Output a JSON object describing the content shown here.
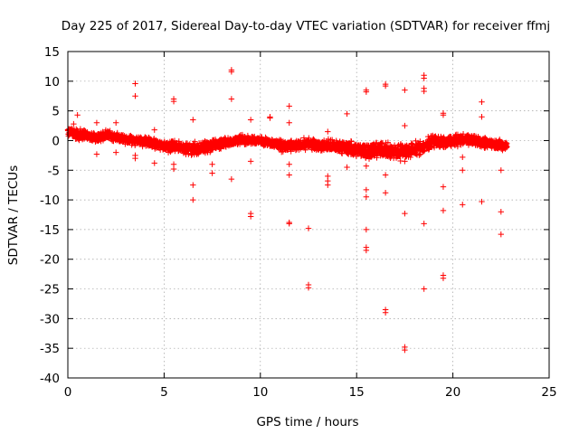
{
  "chart_data": {
    "type": "scatter",
    "title": "Day 225 of 2017, Sidereal Day-to-day VTEC variation (SDTVAR) for receiver ffmj",
    "xlabel": "GPS time / hours",
    "ylabel": "SDTVAR / TECUs",
    "xlim": [
      0,
      25
    ],
    "ylim": [
      -40,
      15
    ],
    "xticks": [
      0,
      5,
      10,
      15,
      20,
      25
    ],
    "yticks": [
      15,
      10,
      5,
      0,
      -5,
      -10,
      -15,
      -20,
      -25,
      -30,
      -35,
      -40
    ],
    "grid": true,
    "marker": "+",
    "series": [
      {
        "name": "SDTVAR",
        "color": "#ff0000",
        "band": {
          "x": [
            0.0,
            0.5,
            1.0,
            1.5,
            2.0,
            2.5,
            3.0,
            3.5,
            4.0,
            4.5,
            5.0,
            5.5,
            6.0,
            6.5,
            7.0,
            7.5,
            8.0,
            8.5,
            9.0,
            9.5,
            10.0,
            10.5,
            11.0,
            11.5,
            12.0,
            12.5,
            13.0,
            13.5,
            14.0,
            14.5,
            15.0,
            15.5,
            16.0,
            16.5,
            17.0,
            17.5,
            18.0,
            18.5,
            19.0,
            19.5,
            20.0,
            20.5,
            21.0,
            21.5,
            22.0,
            22.5,
            22.8
          ],
          "center": [
            1.5,
            1.0,
            0.8,
            0.5,
            1.0,
            0.5,
            0.2,
            0.0,
            -0.3,
            -0.5,
            -1.0,
            -1.0,
            -1.2,
            -1.5,
            -1.2,
            -0.8,
            -0.5,
            -0.3,
            0.2,
            0.0,
            0.0,
            -0.3,
            -0.8,
            -1.0,
            -0.8,
            -0.5,
            -0.8,
            -1.0,
            -1.0,
            -1.2,
            -1.5,
            -1.8,
            -1.5,
            -1.5,
            -2.0,
            -1.8,
            -1.5,
            -1.0,
            0.0,
            -0.5,
            0.0,
            0.2,
            0.0,
            -0.3,
            -0.5,
            -0.8,
            -0.8
          ],
          "spread": [
            1.2,
            1.2,
            1.0,
            1.0,
            1.0,
            1.0,
            1.0,
            1.2,
            1.2,
            1.2,
            1.2,
            1.2,
            1.2,
            1.4,
            1.4,
            1.4,
            1.2,
            1.0,
            1.0,
            1.0,
            0.8,
            1.0,
            1.2,
            1.2,
            1.2,
            1.2,
            1.2,
            1.4,
            1.4,
            1.4,
            1.6,
            1.8,
            1.8,
            1.8,
            1.8,
            1.8,
            1.6,
            1.4,
            1.4,
            1.4,
            1.2,
            1.2,
            1.2,
            1.2,
            1.2,
            1.2,
            1.0
          ],
          "step": 0.02
        },
        "outliers": [
          [
            0.5,
            4.3
          ],
          [
            0.3,
            2.8
          ],
          [
            1.5,
            3.0
          ],
          [
            1.5,
            -2.3
          ],
          [
            2.5,
            3.0
          ],
          [
            2.5,
            -2.0
          ],
          [
            3.5,
            9.6
          ],
          [
            3.5,
            7.5
          ],
          [
            3.5,
            -2.5
          ],
          [
            3.5,
            -3.0
          ],
          [
            4.5,
            1.8
          ],
          [
            4.5,
            -3.8
          ],
          [
            5.5,
            7.0
          ],
          [
            5.5,
            6.6
          ],
          [
            5.5,
            -4.0
          ],
          [
            5.5,
            -4.8
          ],
          [
            6.5,
            3.5
          ],
          [
            6.5,
            -7.5
          ],
          [
            6.5,
            -10.0
          ],
          [
            7.5,
            -4.0
          ],
          [
            7.5,
            -5.5
          ],
          [
            8.5,
            11.9
          ],
          [
            8.5,
            11.6
          ],
          [
            8.5,
            7.0
          ],
          [
            8.5,
            -6.5
          ],
          [
            9.5,
            3.5
          ],
          [
            9.5,
            -3.5
          ],
          [
            9.5,
            -12.3
          ],
          [
            9.5,
            -12.8
          ],
          [
            10.5,
            4.0
          ],
          [
            10.5,
            3.8
          ],
          [
            11.5,
            5.8
          ],
          [
            11.5,
            3.0
          ],
          [
            11.5,
            -4.0
          ],
          [
            11.5,
            -5.8
          ],
          [
            11.5,
            -13.8
          ],
          [
            11.5,
            -14.0
          ],
          [
            12.5,
            -14.8
          ],
          [
            12.5,
            -24.3
          ],
          [
            12.5,
            -24.8
          ],
          [
            13.5,
            1.5
          ],
          [
            13.5,
            -6.0
          ],
          [
            13.5,
            -6.8
          ],
          [
            13.5,
            -7.5
          ],
          [
            14.5,
            4.5
          ],
          [
            14.5,
            -4.5
          ],
          [
            15.5,
            8.5
          ],
          [
            15.5,
            8.2
          ],
          [
            15.5,
            -4.3
          ],
          [
            15.5,
            -8.3
          ],
          [
            15.5,
            -9.5
          ],
          [
            15.5,
            -15.0
          ],
          [
            15.5,
            -18.0
          ],
          [
            15.5,
            -18.5
          ],
          [
            16.5,
            9.5
          ],
          [
            16.5,
            9.2
          ],
          [
            16.5,
            -5.8
          ],
          [
            16.5,
            -8.8
          ],
          [
            16.5,
            -28.5
          ],
          [
            16.5,
            -29.0
          ],
          [
            17.5,
            8.5
          ],
          [
            17.5,
            2.5
          ],
          [
            17.5,
            -3.5
          ],
          [
            17.5,
            -12.3
          ],
          [
            17.5,
            -34.8
          ],
          [
            17.5,
            -35.3
          ],
          [
            18.5,
            11.0
          ],
          [
            18.5,
            10.5
          ],
          [
            18.5,
            8.8
          ],
          [
            18.5,
            8.3
          ],
          [
            18.5,
            -14.0
          ],
          [
            18.5,
            -25.0
          ],
          [
            19.5,
            4.6
          ],
          [
            19.5,
            4.3
          ],
          [
            19.5,
            -7.8
          ],
          [
            19.5,
            -11.8
          ],
          [
            19.5,
            -22.7
          ],
          [
            19.5,
            -23.2
          ],
          [
            20.5,
            -2.8
          ],
          [
            20.5,
            -5.0
          ],
          [
            20.5,
            -10.8
          ],
          [
            21.5,
            6.5
          ],
          [
            21.5,
            4.0
          ],
          [
            21.5,
            -10.3
          ],
          [
            22.5,
            -5.0
          ],
          [
            22.5,
            -12.0
          ],
          [
            22.5,
            -15.8
          ]
        ]
      }
    ]
  }
}
